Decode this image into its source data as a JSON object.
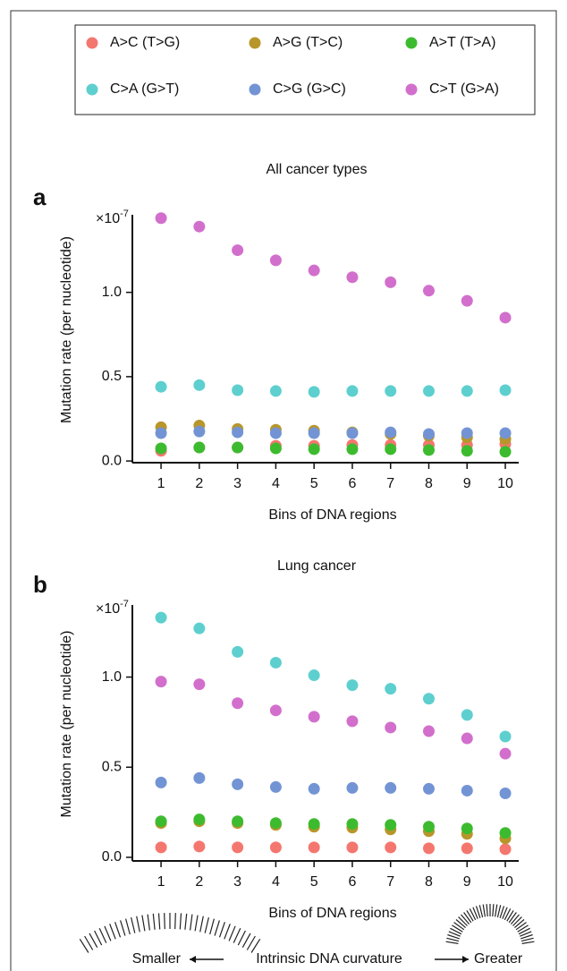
{
  "chart_data": [
    {
      "type": "scatter",
      "panel_label": "a",
      "title": "All cancer types",
      "x_label": "Bins of DNA regions",
      "y_label": "Mutation rate (per nucleotide)",
      "y_multiplier": {
        "base": "×10",
        "exponent": "-7"
      },
      "x": [
        1,
        2,
        3,
        4,
        5,
        6,
        7,
        8,
        9,
        10
      ],
      "xlim": [
        0.25,
        10.35
      ],
      "xticks": [
        1,
        2,
        3,
        4,
        5,
        6,
        7,
        8,
        9,
        10
      ],
      "ylim": [
        -0.01,
        1.46
      ],
      "yticks": [
        {
          "value": 0,
          "label": "0.0"
        },
        0.5,
        {
          "value": 1,
          "label": "1.0"
        }
      ],
      "series": [
        {
          "name": "A>C (T>G)",
          "color": "#f4776f",
          "values": [
            0.06,
            0.08,
            0.08,
            0.09,
            0.09,
            0.095,
            0.095,
            0.095,
            0.095,
            0.1
          ]
        },
        {
          "name": "A>G (T>C)",
          "color": "#b8962a",
          "values": [
            0.2,
            0.21,
            0.19,
            0.185,
            0.18,
            0.17,
            0.16,
            0.15,
            0.14,
            0.13
          ]
        },
        {
          "name": "A>T (T>A)",
          "color": "#3dbb2f",
          "values": [
            0.075,
            0.08,
            0.08,
            0.075,
            0.07,
            0.07,
            0.07,
            0.065,
            0.06,
            0.055
          ]
        },
        {
          "name": "C>A (G>T)",
          "color": "#5ecfcf",
          "values": [
            0.44,
            0.45,
            0.42,
            0.415,
            0.41,
            0.415,
            0.415,
            0.415,
            0.415,
            0.42
          ]
        },
        {
          "name": "C>G (G>C)",
          "color": "#7394d4",
          "values": [
            0.165,
            0.175,
            0.17,
            0.165,
            0.165,
            0.165,
            0.17,
            0.16,
            0.165,
            0.165
          ]
        },
        {
          "name": "C>T (G>A)",
          "color": "#d26fcc",
          "values": [
            1.44,
            1.39,
            1.25,
            1.19,
            1.13,
            1.09,
            1.06,
            1.01,
            0.95,
            0.85
          ]
        }
      ]
    },
    {
      "type": "scatter",
      "panel_label": "b",
      "title": "Lung cancer",
      "x_label": "Bins of DNA regions",
      "y_label": "Mutation rate (per nucleotide)",
      "y_multiplier": {
        "base": "×10",
        "exponent": "-7"
      },
      "x": [
        1,
        2,
        3,
        4,
        5,
        6,
        7,
        8,
        9,
        10
      ],
      "xlim": [
        0.25,
        10.35
      ],
      "xticks": [
        1,
        2,
        3,
        4,
        5,
        6,
        7,
        8,
        9,
        10
      ],
      "ylim": [
        -0.02,
        1.4
      ],
      "yticks": [
        {
          "value": 0,
          "label": "0.0"
        },
        0.5,
        {
          "value": 1,
          "label": "1.0"
        }
      ],
      "series": [
        {
          "name": "A>C (T>G)",
          "color": "#f4776f",
          "values": [
            0.055,
            0.06,
            0.055,
            0.055,
            0.055,
            0.055,
            0.055,
            0.05,
            0.05,
            0.045
          ]
        },
        {
          "name": "A>G (T>C)",
          "color": "#b8962a",
          "values": [
            0.19,
            0.2,
            0.19,
            0.18,
            0.17,
            0.165,
            0.155,
            0.145,
            0.13,
            0.105
          ]
        },
        {
          "name": "A>T (T>A)",
          "color": "#3dbb2f",
          "values": [
            0.2,
            0.21,
            0.2,
            0.19,
            0.185,
            0.185,
            0.18,
            0.17,
            0.16,
            0.135
          ]
        },
        {
          "name": "C>A (G>T)",
          "color": "#5ecfcf",
          "values": [
            1.33,
            1.27,
            1.14,
            1.08,
            1.01,
            0.955,
            0.935,
            0.88,
            0.79,
            0.67
          ]
        },
        {
          "name": "C>G (G>C)",
          "color": "#7394d4",
          "values": [
            0.415,
            0.44,
            0.405,
            0.39,
            0.38,
            0.385,
            0.385,
            0.38,
            0.37,
            0.355
          ]
        },
        {
          "name": "C>T (G>A)",
          "color": "#d26fcc",
          "values": [
            0.975,
            0.96,
            0.855,
            0.815,
            0.78,
            0.755,
            0.72,
            0.7,
            0.66,
            0.575
          ]
        }
      ]
    }
  ],
  "curvature_scale": {
    "left": "Smaller",
    "center": "Intrinsic DNA curvature",
    "right": "Greater"
  }
}
